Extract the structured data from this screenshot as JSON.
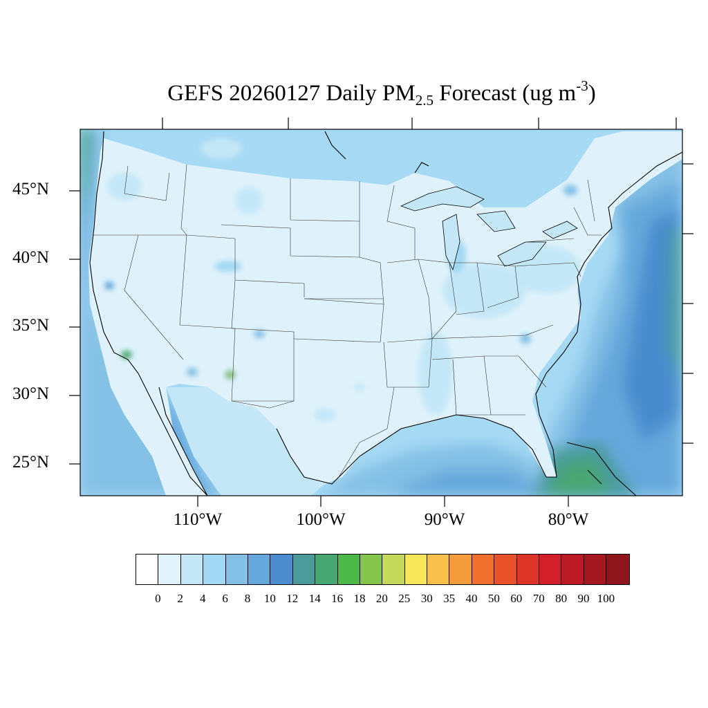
{
  "title": {
    "main": "GEFS 20260127 Daily PM",
    "sub": "2.5",
    "mid": " Forecast (ug m",
    "sup": "-3",
    "end": ")"
  },
  "lat_labels": [
    "45°N",
    "40°N",
    "35°N",
    "30°N",
    "25°N"
  ],
  "lon_labels": [
    "110°W",
    "100°W",
    "90°W",
    "80°W"
  ],
  "colorbar": {
    "colors": [
      "#ffffff",
      "#e0f3fb",
      "#c4e7f7",
      "#a2d8f3",
      "#84c0e5",
      "#66a8dc",
      "#4a8ccd",
      "#4a9b9a",
      "#48a673",
      "#4cb848",
      "#85c44d",
      "#c4d95a",
      "#f8e65a",
      "#f8c04a",
      "#f59c3c",
      "#f1702d",
      "#ea522b",
      "#df3428",
      "#d31f2a",
      "#bc1a25",
      "#a5181f",
      "#8e151b"
    ],
    "labels": [
      "0",
      "2",
      "4",
      "6",
      "8",
      "10",
      "12",
      "14",
      "16",
      "18",
      "20",
      "25",
      "30",
      "35",
      "40",
      "50",
      "60",
      "70",
      "80",
      "90",
      "100"
    ]
  }
}
